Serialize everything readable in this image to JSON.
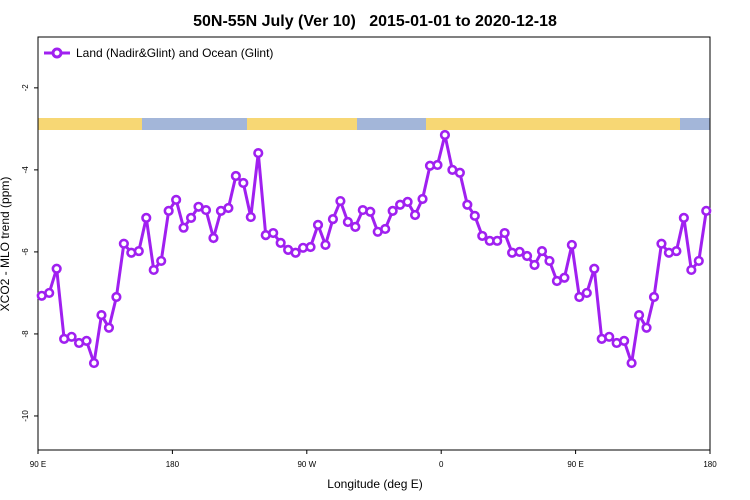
{
  "chart_data": {
    "type": "line",
    "title": "50N-55N July (Ver 10)   2015-01-01 to 2020-12-18",
    "x_label": "Longitude (deg E)",
    "y_label": "XCO2 - MLO trend (ppm)",
    "xlim": [
      90,
      540
    ],
    "ylim": [
      -10.83,
      -0.76
    ],
    "xticks": [
      {
        "value": 90,
        "label": "90 E"
      },
      {
        "value": 180,
        "label": "180"
      },
      {
        "value": 270,
        "label": "90 W"
      },
      {
        "value": 360,
        "label": "0"
      },
      {
        "value": 450,
        "label": "90 E"
      },
      {
        "value": 540,
        "label": "180"
      }
    ],
    "yticks": [
      -10,
      -8,
      -6,
      -4,
      -2
    ],
    "grid": false,
    "legend": "upper left",
    "x": [
      92.5,
      97.5,
      102.5,
      107.5,
      112.5,
      117.5,
      122.5,
      127.5,
      132.5,
      137.5,
      142.5,
      147.5,
      152.5,
      157.5,
      162.5,
      167.5,
      172.5,
      177.5,
      182.5,
      187.5,
      192.5,
      197.5,
      202.5,
      207.5,
      212.5,
      217.5,
      222.5,
      227.5,
      232.5,
      237.5,
      242.5,
      247.5,
      252.5,
      257.5,
      262.5,
      267.5,
      272.5,
      277.5,
      282.5,
      287.5,
      292.5,
      297.5,
      302.5,
      307.5,
      312.5,
      317.5,
      322.5,
      327.5,
      332.5,
      337.5,
      342.5,
      347.5,
      352.5,
      357.5,
      362.5,
      367.5,
      372.5,
      377.5,
      382.5,
      387.5,
      392.5,
      397.5,
      402.5,
      407.5,
      412.5,
      417.5,
      422.5,
      427.5,
      432.5,
      437.5,
      442.5,
      447.5,
      452.5,
      457.5,
      462.5,
      467.5,
      472.5,
      477.5,
      482.5,
      487.5,
      492.5,
      497.5,
      502.5,
      507.5,
      512.5,
      517.5,
      522.5,
      527.5,
      532.5,
      537.5
    ],
    "series": [
      {
        "name": "Land (Nadir&Glint) and Ocean (Glint)",
        "color": "#a020f0",
        "values": [
          -7.07,
          -7.0,
          -6.41,
          -8.12,
          -8.07,
          -8.22,
          -8.17,
          -8.71,
          -7.54,
          -7.85,
          -7.1,
          -5.8,
          -6.02,
          -5.98,
          -5.17,
          -6.44,
          -6.22,
          -5.0,
          -4.73,
          -5.41,
          -5.17,
          -4.9,
          -4.98,
          -5.66,
          -5.0,
          -4.93,
          -4.15,
          -4.32,
          -5.15,
          -3.59,
          -5.59,
          -5.54,
          -5.78,
          -5.95,
          -6.02,
          -5.9,
          -5.88,
          -5.34,
          -5.83,
          -5.2,
          -4.76,
          -5.27,
          -5.39,
          -4.98,
          -5.02,
          -5.51,
          -5.44,
          -5.0,
          -4.85,
          -4.78,
          -5.1,
          -4.71,
          -3.9,
          -3.88,
          -3.15,
          -4.0,
          -4.07,
          -4.85,
          -5.12,
          -5.61,
          -5.73,
          -5.73,
          -5.54,
          -6.02,
          -6.0,
          -6.1,
          -6.32,
          -5.98,
          -6.22,
          -6.71,
          -6.63,
          -5.83,
          -7.1,
          -7.0,
          -6.41,
          -8.12,
          -8.07,
          -8.22,
          -8.17,
          -8.71,
          -7.54,
          -7.85,
          -7.1,
          -5.8,
          -6.02,
          -5.98,
          -5.17,
          -6.44,
          -6.22,
          -5.0
        ]
      }
    ]
  }
}
